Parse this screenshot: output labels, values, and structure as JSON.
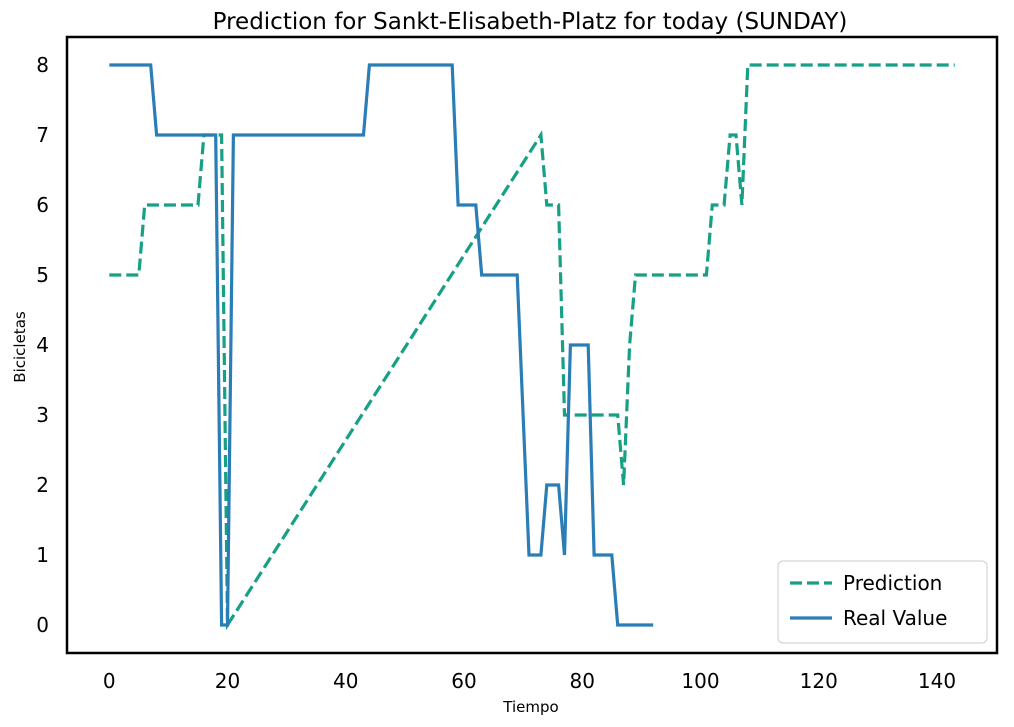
{
  "chart_data": {
    "type": "line",
    "title": "Prediction for Sankt-Elisabeth-Platz for today (SUNDAY)",
    "xlabel": "Tiempo",
    "ylabel": "Bicicletas",
    "xlim": [
      -7.15,
      150.15
    ],
    "ylim": [
      -0.4,
      8.4
    ],
    "xticks": [
      0,
      20,
      40,
      60,
      80,
      100,
      120,
      140
    ],
    "yticks": [
      0,
      1,
      2,
      3,
      4,
      5,
      6,
      7,
      8
    ],
    "grid": false,
    "legend_position": "bottom-right",
    "series": [
      {
        "name": "Prediction",
        "color": "#17a085",
        "style": "dashed",
        "x": [
          0,
          5,
          6,
          15,
          16,
          19,
          20,
          73,
          74,
          76,
          77,
          86,
          87,
          88,
          89,
          101,
          102,
          104,
          105,
          106,
          107,
          108,
          143
        ],
        "y": [
          5,
          5,
          6,
          6,
          7,
          7,
          0,
          7,
          6,
          6,
          3,
          3,
          2,
          4,
          5,
          5,
          6,
          6,
          7,
          7,
          6,
          8,
          8
        ]
      },
      {
        "name": "Real Value",
        "color": "#2a7db5",
        "style": "solid",
        "x": [
          0,
          7,
          8,
          18,
          19,
          20,
          21,
          43,
          44,
          58,
          59,
          62,
          63,
          69,
          71,
          73,
          74,
          76,
          77,
          78,
          81,
          82,
          85,
          86,
          92
        ],
        "y": [
          8,
          8,
          7,
          7,
          0,
          0,
          7,
          7,
          8,
          8,
          6,
          6,
          5,
          5,
          1,
          1,
          2,
          2,
          1,
          4,
          4,
          1,
          1,
          0,
          0
        ]
      }
    ]
  }
}
